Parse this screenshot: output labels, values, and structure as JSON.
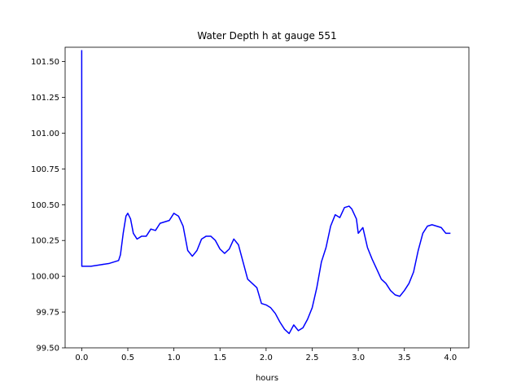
{
  "chart_data": {
    "type": "line",
    "title": "Water Depth h at gauge 551",
    "xlabel": "hours",
    "ylabel": "",
    "xlim": [
      -0.18,
      4.2
    ],
    "ylim": [
      99.5,
      101.6
    ],
    "xticks": [
      0.0,
      0.5,
      1.0,
      1.5,
      2.0,
      2.5,
      3.0,
      3.5,
      4.0
    ],
    "xtick_labels": [
      "0.0",
      "0.5",
      "1.0",
      "1.5",
      "2.0",
      "2.5",
      "3.0",
      "3.5",
      "4.0"
    ],
    "yticks": [
      99.5,
      99.75,
      100.0,
      100.25,
      100.5,
      100.75,
      101.0,
      101.25,
      101.5
    ],
    "ytick_labels": [
      "99.50",
      "99.75",
      "100.00",
      "100.25",
      "100.50",
      "100.75",
      "101.00",
      "101.25",
      "101.50"
    ],
    "grid": false,
    "series": [
      {
        "color": "#0000ff",
        "x": [
          0.0,
          0.0,
          0.001,
          0.1,
          0.2,
          0.3,
          0.4,
          0.42,
          0.45,
          0.48,
          0.5,
          0.53,
          0.56,
          0.6,
          0.65,
          0.7,
          0.75,
          0.8,
          0.85,
          0.9,
          0.95,
          1.0,
          1.05,
          1.1,
          1.15,
          1.2,
          1.25,
          1.3,
          1.35,
          1.4,
          1.45,
          1.5,
          1.55,
          1.6,
          1.65,
          1.7,
          1.75,
          1.8,
          1.85,
          1.9,
          1.95,
          2.0,
          2.05,
          2.1,
          2.15,
          2.2,
          2.25,
          2.3,
          2.35,
          2.4,
          2.45,
          2.5,
          2.55,
          2.6,
          2.65,
          2.7,
          2.75,
          2.8,
          2.85,
          2.9,
          2.93,
          2.98,
          3.0,
          3.05,
          3.1,
          3.15,
          3.2,
          3.25,
          3.3,
          3.35,
          3.4,
          3.45,
          3.5,
          3.55,
          3.6,
          3.65,
          3.7,
          3.75,
          3.8,
          3.85,
          3.9,
          3.95,
          4.0
        ],
        "y": [
          101.58,
          101.58,
          100.07,
          100.07,
          100.08,
          100.09,
          100.11,
          100.15,
          100.3,
          100.42,
          100.44,
          100.4,
          100.3,
          100.26,
          100.28,
          100.28,
          100.33,
          100.32,
          100.37,
          100.38,
          100.39,
          100.44,
          100.42,
          100.35,
          100.18,
          100.14,
          100.18,
          100.26,
          100.28,
          100.28,
          100.25,
          100.19,
          100.16,
          100.19,
          100.26,
          100.22,
          100.1,
          99.98,
          99.95,
          99.92,
          99.81,
          99.8,
          99.78,
          99.74,
          99.68,
          99.63,
          99.6,
          99.66,
          99.62,
          99.64,
          99.7,
          99.78,
          99.92,
          100.1,
          100.2,
          100.35,
          100.43,
          100.41,
          100.48,
          100.49,
          100.47,
          100.4,
          100.3,
          100.34,
          100.2,
          100.12,
          100.05,
          99.98,
          99.95,
          99.9,
          99.87,
          99.86,
          99.9,
          99.95,
          100.03,
          100.18,
          100.3,
          100.35,
          100.36,
          100.35,
          100.34,
          100.3,
          100.3
        ]
      }
    ]
  }
}
